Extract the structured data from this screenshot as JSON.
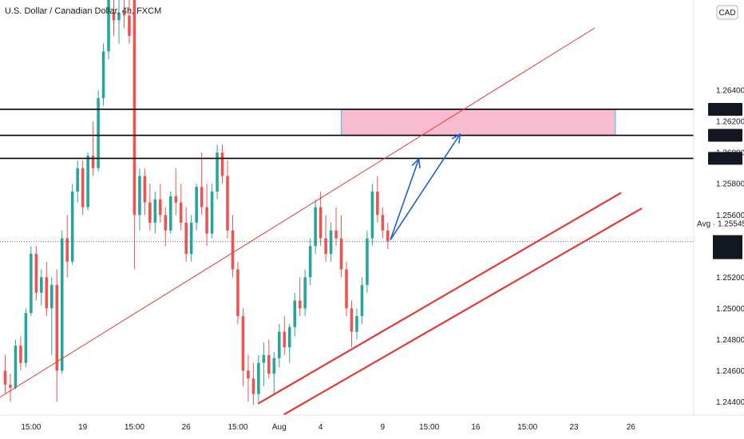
{
  "chart_data": {
    "type": "candlestick",
    "title": "U.S. Dollar / Canadian Dollar, 4h, FXCM",
    "currency": "CAD",
    "y_range": [
      1.2432,
      1.2698
    ],
    "y_ticks": [
      "1.26400",
      "1.26200",
      "1.26000",
      "1.25800",
      "1.25600",
      "1.25200",
      "1.25000",
      "1.24800",
      "1.24600",
      "1.24400"
    ],
    "x_ticks": [
      {
        "label": "15:00",
        "x": 5
      },
      {
        "label": "19",
        "x": 15
      },
      {
        "label": "15:00",
        "x": 25
      },
      {
        "label": "26",
        "x": 35
      },
      {
        "label": "15:00",
        "x": 45
      },
      {
        "label": "Aug",
        "x": 53
      },
      {
        "label": "4",
        "x": 61
      },
      {
        "label": "9",
        "x": 73
      },
      {
        "label": "15:00",
        "x": 82
      },
      {
        "label": "16",
        "x": 91
      },
      {
        "label": "15:00",
        "x": 101
      },
      {
        "label": "23",
        "x": 110
      },
      {
        "label": "26",
        "x": 121
      }
    ],
    "x_range": [
      -1,
      133
    ],
    "levels": [
      {
        "label": "1.26278",
        "value": 1.26278
      },
      {
        "label": "1.26111",
        "value": 1.26111
      },
      {
        "label": "1.25963",
        "value": 1.25963
      }
    ],
    "current_price": {
      "label": "1.25429",
      "value": 1.25429,
      "countdown": "07:42"
    },
    "average": {
      "label": "Avg · 1.25545",
      "value": 1.25545
    },
    "zone": {
      "x_start": 65,
      "x_end": 118,
      "top": 1.26278,
      "bottom": 1.26111
    },
    "channel_upper": [
      {
        "x": -1,
        "y": 1.2443
      },
      {
        "x": 114,
        "y": 1.268
      }
    ],
    "channel_lower_1": [
      {
        "x": 49,
        "y": 1.2439
      },
      {
        "x": 119,
        "y": 1.2574
      }
    ],
    "channel_lower_2": [
      {
        "x": 54,
        "y": 1.2432
      },
      {
        "x": 123,
        "y": 1.2564
      }
    ],
    "projection_arrows": [
      {
        "from": {
          "x": 74.5,
          "y": 1.2544
        },
        "to": {
          "x": 80,
          "y": 1.2596
        }
      },
      {
        "from": {
          "x": 74.5,
          "y": 1.2544
        },
        "to": {
          "x": 88,
          "y": 1.2612
        }
      }
    ],
    "colors": {
      "up": "#26a69a",
      "down": "#ef5350",
      "channel": "#e53935",
      "arrow": "#1e5fd6",
      "zone_fill": "#f8bbd0",
      "zone_border": "#4fc3f7",
      "level": "#000000"
    },
    "candles": [
      [
        1.246,
        1.247,
        1.2445,
        1.2451
      ],
      [
        1.2451,
        1.2458,
        1.244,
        1.2449
      ],
      [
        1.2449,
        1.248,
        1.2448,
        1.2476
      ],
      [
        1.2476,
        1.2482,
        1.246,
        1.2465
      ],
      [
        1.2465,
        1.25,
        1.2462,
        1.2497
      ],
      [
        1.2497,
        1.254,
        1.2495,
        1.2535
      ],
      [
        1.2535,
        1.254,
        1.2505,
        1.251
      ],
      [
        1.251,
        1.2525,
        1.2502,
        1.252
      ],
      [
        1.252,
        1.253,
        1.2495,
        1.25
      ],
      [
        1.25,
        1.252,
        1.247,
        1.2515
      ],
      [
        1.2515,
        1.2525,
        1.244,
        1.246
      ],
      [
        1.246,
        1.255,
        1.2458,
        1.2545
      ],
      [
        1.2545,
        1.256,
        1.252,
        1.253
      ],
      [
        1.253,
        1.258,
        1.2528,
        1.2575
      ],
      [
        1.2575,
        1.2595,
        1.2568,
        1.259
      ],
      [
        1.259,
        1.2595,
        1.256,
        1.2565
      ],
      [
        1.2565,
        1.26,
        1.2563,
        1.2598
      ],
      [
        1.2598,
        1.262,
        1.2585,
        1.259
      ],
      [
        1.259,
        1.264,
        1.2588,
        1.2635
      ],
      [
        1.2635,
        1.267,
        1.263,
        1.2665
      ],
      [
        1.2665,
        1.2698,
        1.266,
        1.2698
      ],
      [
        1.269,
        1.2698,
        1.2675,
        1.2685
      ],
      [
        1.2685,
        1.2698,
        1.267,
        1.269
      ],
      [
        1.269,
        1.2698,
        1.268,
        1.2688
      ],
      [
        1.2688,
        1.2698,
        1.267,
        1.2675
      ],
      [
        1.2698,
        1.2698,
        1.2525,
        1.256
      ],
      [
        1.256,
        1.259,
        1.255,
        1.2585
      ],
      [
        1.2585,
        1.259,
        1.256,
        1.2568
      ],
      [
        1.2568,
        1.258,
        1.255,
        1.2555
      ],
      [
        1.2555,
        1.2575,
        1.2548,
        1.257
      ],
      [
        1.257,
        1.258,
        1.2555,
        1.256
      ],
      [
        1.256,
        1.2565,
        1.254,
        1.255
      ],
      [
        1.255,
        1.2575,
        1.2548,
        1.2572
      ],
      [
        1.2572,
        1.259,
        1.256,
        1.2568
      ],
      [
        1.2568,
        1.258,
        1.255,
        1.2555
      ],
      [
        1.2555,
        1.2565,
        1.253,
        1.2535
      ],
      [
        1.2535,
        1.256,
        1.253,
        1.2555
      ],
      [
        1.2555,
        1.258,
        1.255,
        1.2578
      ],
      [
        1.2578,
        1.26,
        1.256,
        1.2565
      ],
      [
        1.2565,
        1.258,
        1.254,
        1.2548
      ],
      [
        1.2548,
        1.258,
        1.2545,
        1.2575
      ],
      [
        1.2575,
        1.2605,
        1.257,
        1.26
      ],
      [
        1.26,
        1.2605,
        1.258,
        1.2585
      ],
      [
        1.2585,
        1.2595,
        1.2545,
        1.255
      ],
      [
        1.255,
        1.256,
        1.252,
        1.2525
      ],
      [
        1.2525,
        1.253,
        1.249,
        1.2495
      ],
      [
        1.2495,
        1.25,
        1.245,
        1.246
      ],
      [
        1.246,
        1.247,
        1.244,
        1.2455
      ],
      [
        1.2455,
        1.2465,
        1.2438,
        1.2445
      ],
      [
        1.2445,
        1.247,
        1.244,
        1.2465
      ],
      [
        1.2465,
        1.2478,
        1.245,
        1.247
      ],
      [
        1.247,
        1.248,
        1.2455,
        1.2458
      ],
      [
        1.2458,
        1.2472,
        1.2445,
        1.2468
      ],
      [
        1.2468,
        1.249,
        1.2462,
        1.2485
      ],
      [
        1.2485,
        1.2495,
        1.247,
        1.2475
      ],
      [
        1.2475,
        1.249,
        1.2465,
        1.2488
      ],
      [
        1.2488,
        1.251,
        1.2482,
        1.2505
      ],
      [
        1.2505,
        1.252,
        1.2495,
        1.25
      ],
      [
        1.25,
        1.2525,
        1.2495,
        1.252
      ],
      [
        1.252,
        1.2545,
        1.2515,
        1.254
      ],
      [
        1.254,
        1.257,
        1.2535,
        1.2565
      ],
      [
        1.2565,
        1.2575,
        1.254,
        1.2545
      ],
      [
        1.2545,
        1.256,
        1.253,
        1.2535
      ],
      [
        1.2535,
        1.2555,
        1.253,
        1.255
      ],
      [
        1.255,
        1.2565,
        1.254,
        1.2545
      ],
      [
        1.2545,
        1.256,
        1.252,
        1.2525
      ],
      [
        1.2525,
        1.253,
        1.2495,
        1.25
      ],
      [
        1.25,
        1.2505,
        1.2475,
        1.2485
      ],
      [
        1.2485,
        1.25,
        1.248,
        1.2495
      ],
      [
        1.2495,
        1.252,
        1.249,
        1.2515
      ],
      [
        1.2515,
        1.255,
        1.251,
        1.2545
      ],
      [
        1.2545,
        1.258,
        1.254,
        1.2575
      ],
      [
        1.2575,
        1.2585,
        1.2555,
        1.256
      ],
      [
        1.256,
        1.2565,
        1.2545,
        1.255
      ],
      [
        1.255,
        1.2555,
        1.2538,
        1.2543
      ]
    ]
  }
}
